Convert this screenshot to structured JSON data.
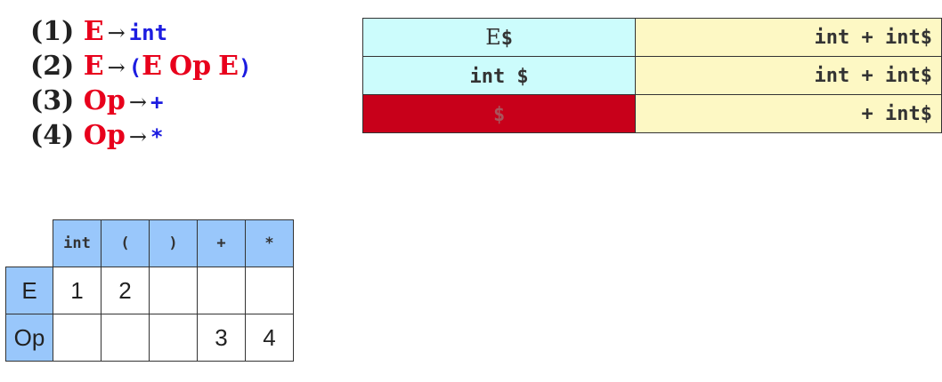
{
  "grammar": [
    {
      "num": "(1)",
      "lhs": "E",
      "arrow": "→",
      "rhs": [
        {
          "t": "int",
          "k": "term"
        }
      ]
    },
    {
      "num": "(2)",
      "lhs": "E",
      "arrow": "→",
      "rhs": [
        {
          "t": "(",
          "k": "term"
        },
        {
          "t": "E",
          "k": "nt"
        },
        {
          "t": "Op",
          "k": "nt"
        },
        {
          "t": "E",
          "k": "nt"
        },
        {
          "t": ")",
          "k": "term"
        }
      ]
    },
    {
      "num": "(3)",
      "lhs": "Op",
      "arrow": "→",
      "rhs": [
        {
          "t": "+",
          "k": "term"
        }
      ]
    },
    {
      "num": "(4)",
      "lhs": "Op",
      "arrow": "→",
      "rhs": [
        {
          "t": "*",
          "k": "term"
        }
      ]
    }
  ],
  "trace": [
    {
      "stack_symbol": "E",
      "stack_end": "$",
      "input": "int + int$",
      "error": false
    },
    {
      "stack_symbol": "",
      "stack_end": "int $",
      "input": "int + int$",
      "error": false
    },
    {
      "stack_symbol": "",
      "stack_end": "$",
      "input": "+ int$",
      "error": true
    }
  ],
  "table": {
    "columns": [
      "int",
      "(",
      ")",
      "+",
      "*"
    ],
    "rows": [
      {
        "head": "E",
        "cells": [
          "1",
          "2",
          "",
          "",
          ""
        ]
      },
      {
        "head": "Op",
        "cells": [
          "",
          "",
          "",
          "3",
          "4"
        ]
      }
    ]
  },
  "colors": {
    "nonterminal": "#e8001c",
    "terminal": "#1c1ce0",
    "stack_bg": "#ccfcfc",
    "input_bg": "#fdf8c4",
    "error_bg": "#c8001a",
    "table_header_bg": "#99c7fb"
  }
}
